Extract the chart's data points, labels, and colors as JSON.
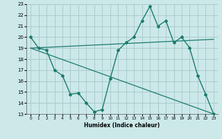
{
  "xlabel": "Humidex (Indice chaleur)",
  "xlim": [
    -0.5,
    23.5
  ],
  "ylim": [
    13,
    23
  ],
  "yticks": [
    13,
    14,
    15,
    16,
    17,
    18,
    19,
    20,
    21,
    22,
    23
  ],
  "xticks": [
    0,
    1,
    2,
    3,
    4,
    5,
    6,
    7,
    8,
    9,
    10,
    11,
    12,
    13,
    14,
    15,
    16,
    17,
    18,
    19,
    20,
    21,
    22,
    23
  ],
  "bg_color": "#cce8e8",
  "grid_color": "#aacccc",
  "line_color": "#1a7a6e",
  "line1_x": [
    0,
    1,
    2,
    3,
    4,
    5,
    6,
    7,
    8,
    9,
    10,
    11,
    12,
    13,
    14,
    15,
    16,
    17,
    18,
    19,
    20,
    21,
    22,
    23
  ],
  "line1_y": [
    20,
    19,
    18.8,
    17,
    16.5,
    14.8,
    14.9,
    14.0,
    13.2,
    13.4,
    16.2,
    18.8,
    19.5,
    20.0,
    21.5,
    22.8,
    21.0,
    21.5,
    19.5,
    20.0,
    19.0,
    16.5,
    14.8,
    13.0
  ],
  "line2_x": [
    0,
    23
  ],
  "line2_y": [
    19.0,
    13.0
  ],
  "line3_x": [
    0,
    23
  ],
  "line3_y": [
    19.0,
    19.8
  ]
}
